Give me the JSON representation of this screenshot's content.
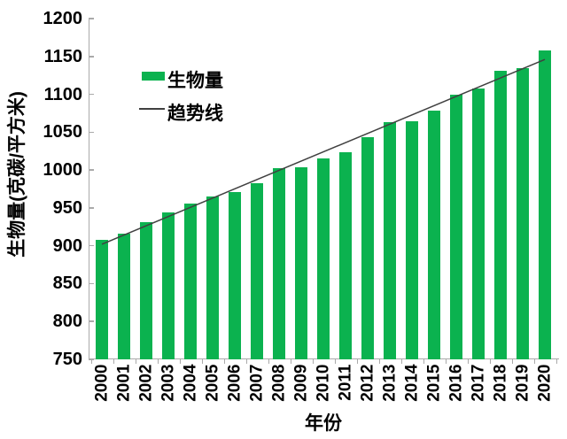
{
  "chart_data": {
    "type": "bar",
    "title": "",
    "xlabel": "年份",
    "ylabel": "生物量(克碳/平方米)",
    "categories": [
      "2000",
      "2001",
      "2002",
      "2003",
      "2004",
      "2005",
      "2006",
      "2007",
      "2008",
      "2009",
      "2010",
      "2011",
      "2012",
      "2013",
      "2014",
      "2015",
      "2016",
      "2017",
      "2018",
      "2019",
      "2020"
    ],
    "series": [
      {
        "name": "生物量",
        "type": "bar",
        "color": "#0BB24F",
        "values": [
          908,
          916,
          931,
          944,
          956,
          965,
          971,
          983,
          1002,
          1004,
          1015,
          1023,
          1043,
          1063,
          1065,
          1079,
          1100,
          1108,
          1131,
          1135,
          1158
        ]
      },
      {
        "name": "趋势线",
        "type": "line",
        "color": "#404040"
      }
    ],
    "trendline": {
      "start_year": "2000",
      "start_value": 902,
      "end_year": "2020",
      "end_value": 1146
    },
    "ylim": [
      750,
      1200
    ],
    "yticks": [
      1200,
      1150,
      1100,
      1050,
      1000,
      950,
      900,
      850,
      800,
      750
    ],
    "grid": false,
    "legend_position": "top-left-inside"
  },
  "colors": {
    "bar_green": "#0BB24F",
    "trend_line": "#404040",
    "axis": "#AAAAAA",
    "text": "#000000",
    "background": "#FFFFFF"
  }
}
